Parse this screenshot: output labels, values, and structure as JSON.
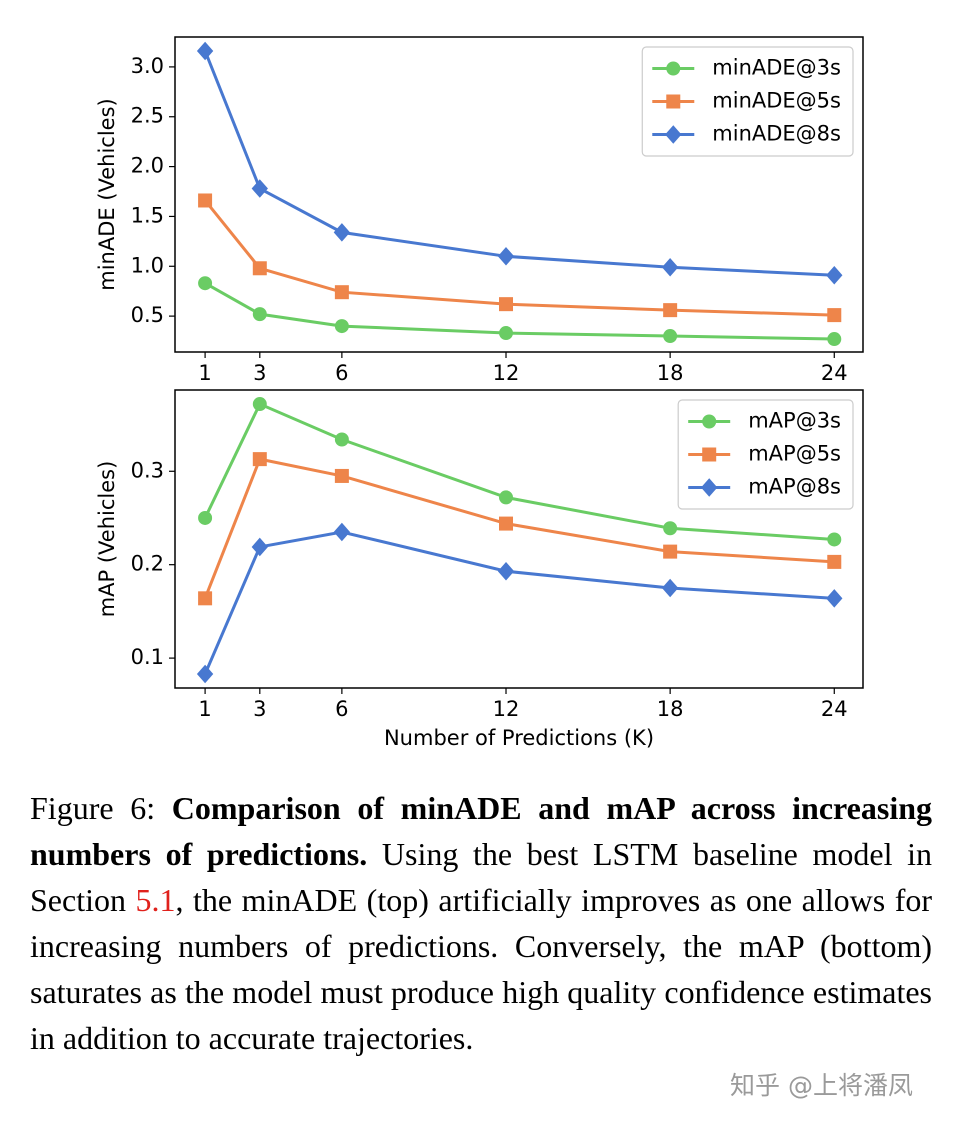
{
  "chart_data": [
    {
      "type": "line",
      "ylabel": "minADE (Vehicles)",
      "x": [
        1,
        3,
        6,
        12,
        18,
        24
      ],
      "xlim": [
        -0.1,
        25.05
      ],
      "xticks": [
        1,
        3,
        6,
        12,
        18,
        24
      ],
      "ylim": [
        0.14,
        3.3
      ],
      "yticks": [
        0.5,
        {
          "value": 1,
          "label": "1.0"
        },
        1.5,
        {
          "value": 2,
          "label": "2.0"
        },
        2.5,
        {
          "value": 3,
          "label": "3.0"
        }
      ],
      "legend": "upper right",
      "series": [
        {
          "name": "minADE@3s",
          "color": "#6acc64",
          "marker": "circle",
          "values": [
            0.83,
            0.52,
            0.4,
            0.33,
            0.3,
            0.27
          ]
        },
        {
          "name": "minADE@5s",
          "color": "#ee854a",
          "marker": "square",
          "values": [
            1.66,
            0.98,
            0.74,
            0.62,
            0.56,
            0.51
          ]
        },
        {
          "name": "minADE@8s",
          "color": "#4878d0",
          "marker": "diamond",
          "values": [
            3.16,
            1.78,
            1.34,
            1.1,
            0.99,
            0.91
          ]
        }
      ]
    },
    {
      "type": "line",
      "ylabel": "mAP (Vehicles)",
      "xlabel": "Number of Predictions (K)",
      "x": [
        1,
        3,
        6,
        12,
        18,
        24
      ],
      "xlim": [
        -0.1,
        25.05
      ],
      "xticks": [
        1,
        3,
        6,
        12,
        18,
        24
      ],
      "ylim": [
        0.068,
        0.387
      ],
      "yticks": [
        0.1,
        0.2,
        0.3
      ],
      "legend": "upper right",
      "series": [
        {
          "name": "mAP@3s",
          "color": "#6acc64",
          "marker": "circle",
          "values": [
            0.25,
            0.372,
            0.334,
            0.272,
            0.239,
            0.227
          ]
        },
        {
          "name": "mAP@5s",
          "color": "#ee854a",
          "marker": "square",
          "values": [
            0.164,
            0.313,
            0.295,
            0.244,
            0.214,
            0.203
          ]
        },
        {
          "name": "mAP@8s",
          "color": "#4878d0",
          "marker": "diamond",
          "values": [
            0.083,
            0.219,
            0.235,
            0.193,
            0.175,
            0.164
          ]
        }
      ]
    }
  ],
  "caption": {
    "label": "Figure 6:",
    "title": "Comparison of minADE and mAP across increasing numbers of predictions.",
    "body_before": "Using the best LSTM baseline model in Section",
    "ref": "5.1",
    "body_after": ", the minADE (top) artificially improves as one allows for increasing numbers of predictions. Conversely, the mAP (bottom) saturates as the model must produce high quality confidence estimates in addition to accurate trajectories."
  },
  "watermark": "知乎 @上将潘凤"
}
